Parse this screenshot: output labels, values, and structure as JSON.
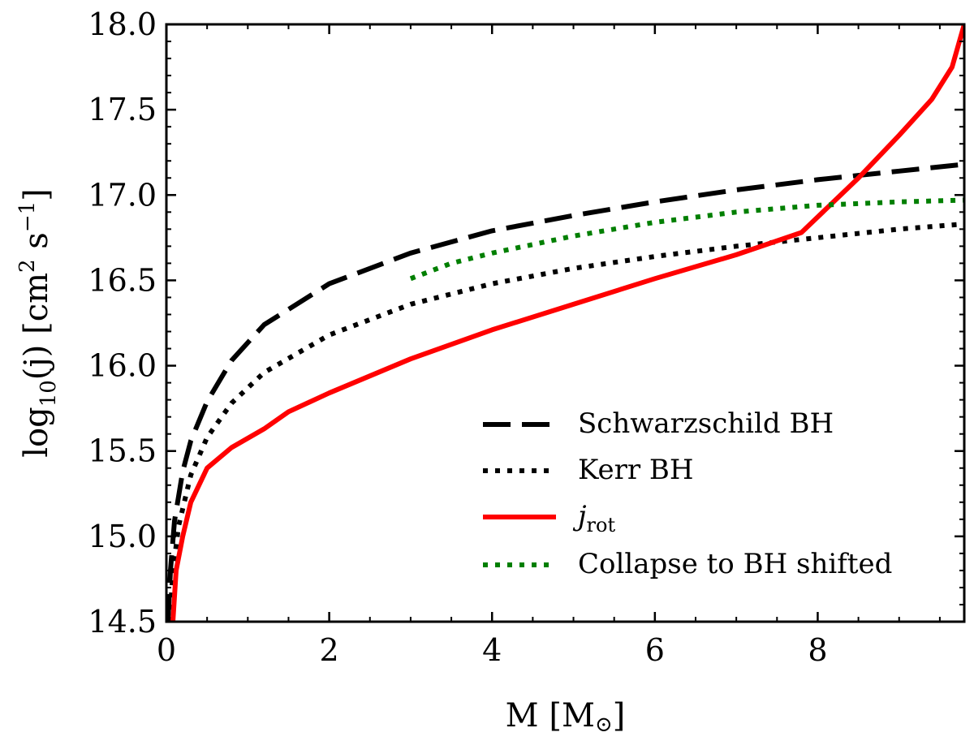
{
  "chart_data": {
    "type": "line",
    "xlabel": "M [M",
    "xlabel_symbol": "⊙",
    "xlabel_close": "]",
    "ylabel": "log",
    "ylabel_sub": "10",
    "ylabel_rest": "(j) [cm",
    "ylabel_sup1": "2",
    "ylabel_mid": " s",
    "ylabel_sup2": "−1",
    "ylabel_close": "]",
    "xlim": [
      0,
      9.8
    ],
    "ylim": [
      14.5,
      18.0
    ],
    "xticks": [
      0,
      2,
      4,
      6,
      8
    ],
    "xtick_labels": [
      "0",
      "2",
      "4",
      "6",
      "8"
    ],
    "yticks": [
      14.5,
      15.0,
      15.5,
      16.0,
      16.5,
      17.0,
      17.5,
      18.0
    ],
    "ytick_labels": [
      "14.5",
      "15.0",
      "15.5",
      "16.0",
      "16.5",
      "17.0",
      "17.5",
      "18.0"
    ],
    "legend_position": "lower-right",
    "series": [
      {
        "name": "Schwarzschild BH",
        "style": "dashed",
        "color": "#000000",
        "x": [
          0.02,
          0.05,
          0.1,
          0.2,
          0.3,
          0.5,
          0.8,
          1.2,
          2,
          3,
          4,
          5,
          6,
          7,
          8,
          9,
          9.8
        ],
        "y": [
          14.5,
          14.8,
          15.09,
          15.38,
          15.56,
          15.79,
          16.03,
          16.24,
          16.48,
          16.66,
          16.79,
          16.88,
          16.96,
          17.03,
          17.09,
          17.14,
          17.18
        ]
      },
      {
        "name": "Kerr BH",
        "style": "dotted",
        "color": "#000000",
        "x": [
          0.04,
          0.08,
          0.15,
          0.3,
          0.5,
          0.8,
          1.2,
          2,
          3,
          4,
          5,
          6,
          7,
          8,
          9,
          9.8
        ],
        "y": [
          14.5,
          14.79,
          15.06,
          15.36,
          15.58,
          15.78,
          15.96,
          16.18,
          16.36,
          16.48,
          16.57,
          16.64,
          16.7,
          16.75,
          16.8,
          16.83
        ]
      },
      {
        "name": "j_rot",
        "label_main": "j",
        "label_sub": "rot",
        "style": "solid",
        "color": "#ff0000",
        "x": [
          0.08,
          0.12,
          0.2,
          0.3,
          0.5,
          0.8,
          1.2,
          1.5,
          2,
          3,
          4,
          5,
          6,
          7,
          7.8,
          8.5,
          9,
          9.4,
          9.65,
          9.8
        ],
        "y": [
          14.5,
          14.8,
          15.0,
          15.2,
          15.4,
          15.52,
          15.63,
          15.73,
          15.84,
          16.04,
          16.21,
          16.36,
          16.51,
          16.65,
          16.78,
          17.1,
          17.35,
          17.56,
          17.75,
          18.0
        ]
      },
      {
        "name": "Collapse to BH shifted",
        "style": "dotted",
        "color": "#007f00",
        "x": [
          3,
          3.5,
          4,
          5,
          6,
          7,
          8,
          9,
          9.8
        ],
        "y": [
          16.51,
          16.6,
          16.66,
          16.76,
          16.84,
          16.9,
          16.94,
          16.96,
          16.97
        ]
      }
    ]
  }
}
